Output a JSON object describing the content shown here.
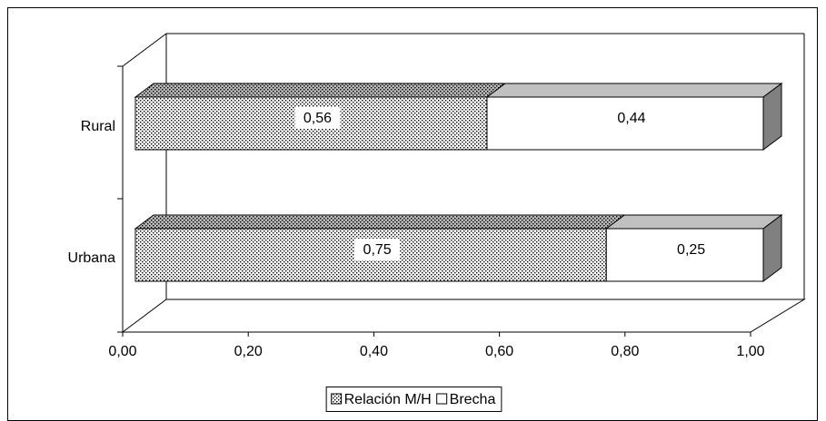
{
  "chart_data": {
    "type": "bar3d_stacked_horizontal",
    "categories": [
      "Rural",
      "Urbana"
    ],
    "series": [
      {
        "name": "Relación M/H",
        "color": "#000000",
        "pattern": "dots",
        "values": [
          0.56,
          0.75
        ],
        "value_labels": [
          "0,56",
          "0,75"
        ]
      },
      {
        "name": "Brecha",
        "color": "#ffffff",
        "values": [
          0.44,
          0.25
        ],
        "value_labels": [
          "0,44",
          "0,25"
        ]
      }
    ],
    "xlim": [
      0,
      1
    ],
    "xticks": [
      {
        "value": 0,
        "label": "0,00"
      },
      {
        "value": 0.2,
        "label": "0,20"
      },
      {
        "value": 0.4,
        "label": "0,40"
      },
      {
        "value": 0.6,
        "label": "0,60"
      },
      {
        "value": 0.8,
        "label": "0,80"
      },
      {
        "value": 1,
        "label": "1,00"
      }
    ],
    "legend": "bottom"
  }
}
